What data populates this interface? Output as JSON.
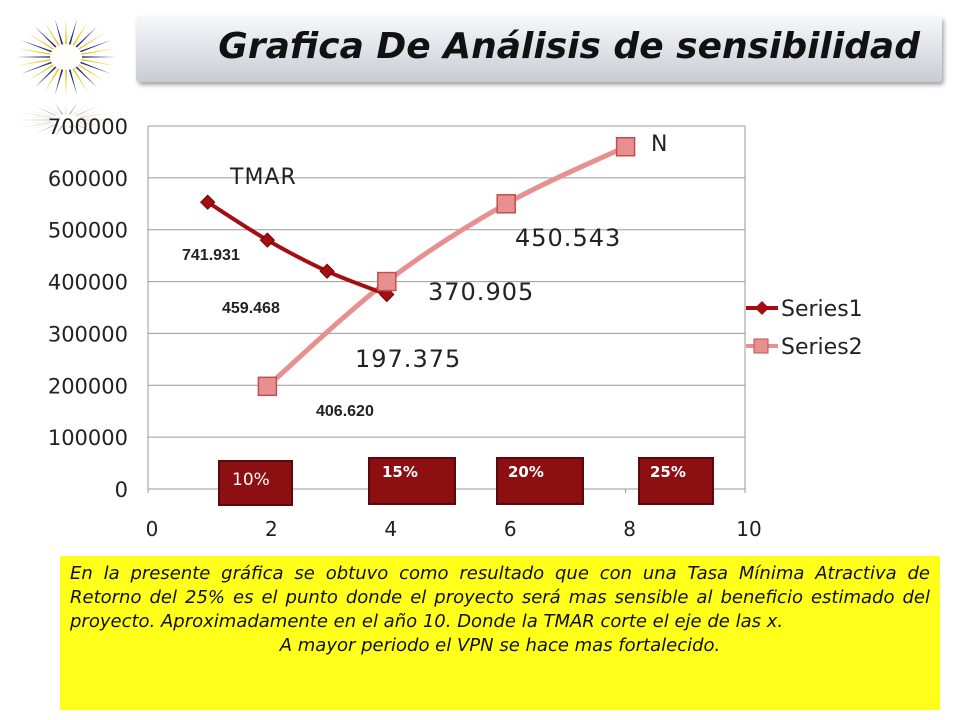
{
  "title": "Grafica De Análisis de sensibilidad",
  "colors": {
    "series1": "#a60d12",
    "series2": "#e89090",
    "pct_box": "#8c0f12",
    "note_bg": "#ffff1a",
    "logo_blue": "#1f2a7a",
    "logo_gold": "#f0c419"
  },
  "chart_data": {
    "type": "line",
    "ylim": [
      0,
      700000
    ],
    "xlim": [
      0,
      10
    ],
    "y_ticks": [
      "700000",
      "600000",
      "500000",
      "400000",
      "300000",
      "200000",
      "100000",
      "0"
    ],
    "x_ticks": [
      "0",
      "2",
      "4",
      "6",
      "8",
      "10"
    ],
    "grid": true,
    "legend_position": "right",
    "series": [
      {
        "name": "Series1",
        "x": [
          1,
          2,
          3,
          4
        ],
        "y": [
          553000,
          480000,
          420000,
          375000
        ]
      },
      {
        "name": "Series2",
        "x": [
          2,
          4,
          6,
          8
        ],
        "y": [
          198000,
          400000,
          550000,
          660000
        ]
      }
    ],
    "annotations": {
      "tmar": "TMAR",
      "n": "N",
      "v450": "450.543",
      "v370": "370.905",
      "v197": "197.375",
      "v741": "741.931",
      "v459": "459.468",
      "v406": "406.620"
    },
    "rate_boxes": [
      "10%",
      "15%",
      "20%",
      "25%"
    ]
  },
  "note": {
    "paragraph1": "En la presente gráfica se obtuvo como resultado que con una Tasa Mínima Atractiva de Retorno del 25% es el punto donde el proyecto será mas sensible al beneficio estimado del proyecto. Aproximadamente  en el año 10. Donde la TMAR corte el eje de las x.",
    "paragraph2": "A mayor periodo el VPN se hace mas fortalecido."
  }
}
